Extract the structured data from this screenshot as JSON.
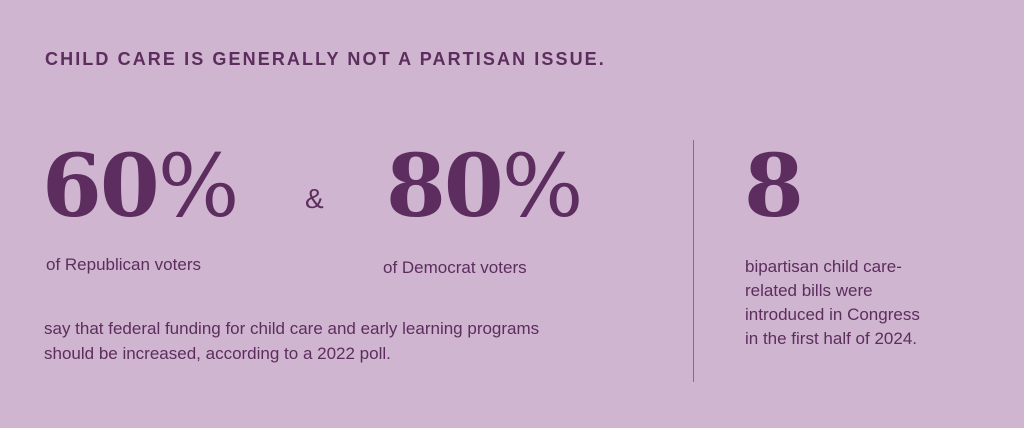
{
  "heading": "CHILD CARE IS GENERALLY NOT A PARTISAN ISSUE.",
  "stats": {
    "republican": {
      "number": "60",
      "unit": "%",
      "caption": "of Republican voters"
    },
    "ampersand": "&",
    "democrat": {
      "number": "80",
      "unit": "%",
      "caption": "of Democrat voters"
    },
    "summary_line1": "say that federal funding for child care and early learning programs",
    "summary_line2": "should be increased, according to a 2022 poll."
  },
  "bills": {
    "number": "8",
    "line1": "bipartisan child care-",
    "line2": "related bills were",
    "line3": "introduced in Congress",
    "line4": "in the first half of 2024."
  },
  "colors": {
    "background": "#cfb5cf",
    "text": "#5c2d5e",
    "divider": "#8c6a8e"
  }
}
